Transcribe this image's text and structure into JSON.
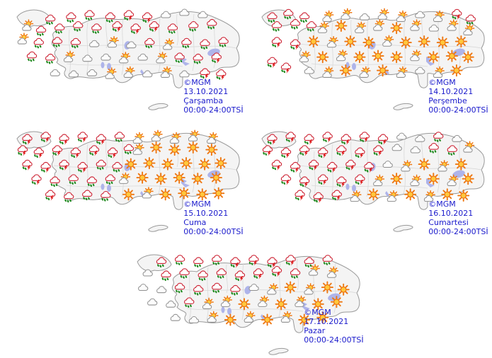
{
  "page": {
    "title": "MGM 5 günlük hava tahmin haritaları",
    "background": "#ffffff"
  },
  "colors": {
    "map_fill": "#f4f4f4",
    "map_border": "#9a9a9a",
    "province_line": "#d8d8d8",
    "lake": "#aeb4ea",
    "label_text": "#1a1acc",
    "sun_ray": "#ee7711",
    "sun_core": "#ffc83d",
    "cloud_fill": "#fcfcfc",
    "cloud_stroke": "#8f8f8f",
    "rain_cloud_stroke": "#cc2233",
    "raindrop": "#1e8a1e",
    "lightning": "#dd1111"
  },
  "icon_types": {
    "su": "sunny",
    "sc": "partly-cloudy",
    "c": "cloudy",
    "r": "rain",
    "s": "thunderstorm"
  },
  "icon_format": "[x_percent, y_percent, type]",
  "maps": [
    {
      "copyright": "©MGM",
      "date": "13.10.2021",
      "day": "Çarşamba",
      "hours": "00:00-24:00TSİ",
      "icons": [
        [
          18,
          12,
          "r"
        ],
        [
          27,
          10,
          "r"
        ],
        [
          35,
          8,
          "r"
        ],
        [
          44,
          10,
          "r"
        ],
        [
          52,
          8,
          "s"
        ],
        [
          60,
          10,
          "s"
        ],
        [
          68,
          8,
          "c"
        ],
        [
          76,
          6,
          "c"
        ],
        [
          84,
          8,
          "c"
        ],
        [
          8,
          18,
          "sc"
        ],
        [
          14,
          22,
          "r"
        ],
        [
          22,
          20,
          "r"
        ],
        [
          30,
          18,
          "r"
        ],
        [
          38,
          20,
          "r"
        ],
        [
          47,
          18,
          "s"
        ],
        [
          55,
          20,
          "s"
        ],
        [
          63,
          18,
          "s"
        ],
        [
          71,
          20,
          "r"
        ],
        [
          80,
          18,
          "r"
        ],
        [
          88,
          16,
          "r"
        ],
        [
          6,
          30,
          "sc"
        ],
        [
          13,
          33,
          "r"
        ],
        [
          21,
          32,
          "r"
        ],
        [
          29,
          33,
          "r"
        ],
        [
          37,
          34,
          "c"
        ],
        [
          45,
          33,
          "sc"
        ],
        [
          53,
          35,
          "c"
        ],
        [
          61,
          33,
          "r"
        ],
        [
          69,
          35,
          "sc"
        ],
        [
          77,
          33,
          "r"
        ],
        [
          85,
          34,
          "r"
        ],
        [
          93,
          32,
          "r"
        ],
        [
          10,
          45,
          "r"
        ],
        [
          18,
          47,
          "r"
        ],
        [
          26,
          46,
          "sc"
        ],
        [
          34,
          47,
          "c"
        ],
        [
          42,
          46,
          "c"
        ],
        [
          50,
          47,
          "sc"
        ],
        [
          58,
          46,
          "c"
        ],
        [
          66,
          47,
          "sc"
        ],
        [
          74,
          46,
          "r"
        ],
        [
          82,
          47,
          "r"
        ],
        [
          90,
          46,
          "s"
        ],
        [
          20,
          60,
          "c"
        ],
        [
          28,
          61,
          "c"
        ],
        [
          36,
          60,
          "c"
        ],
        [
          44,
          61,
          "sc"
        ],
        [
          52,
          60,
          "sc"
        ],
        [
          60,
          61,
          "c"
        ],
        [
          68,
          60,
          "sc"
        ],
        [
          76,
          61,
          "c"
        ],
        [
          85,
          60,
          "s"
        ],
        [
          92,
          61,
          "s"
        ]
      ]
    },
    {
      "copyright": "©MGM",
      "date": "14.10.2021",
      "day": "Perşembe",
      "hours": "00:00-24:00TSİ",
      "icons": [
        [
          8,
          10,
          "r"
        ],
        [
          15,
          7,
          "r"
        ],
        [
          22,
          10,
          "r"
        ],
        [
          10,
          18,
          "r"
        ],
        [
          18,
          16,
          "r"
        ],
        [
          25,
          18,
          "r"
        ],
        [
          32,
          10,
          "sc"
        ],
        [
          40,
          8,
          "sc"
        ],
        [
          48,
          10,
          "c"
        ],
        [
          56,
          8,
          "sc"
        ],
        [
          64,
          10,
          "sc"
        ],
        [
          72,
          8,
          "c"
        ],
        [
          80,
          10,
          "sc"
        ],
        [
          88,
          7,
          "s"
        ],
        [
          94,
          12,
          "r"
        ],
        [
          30,
          20,
          "sc"
        ],
        [
          38,
          18,
          "su"
        ],
        [
          46,
          20,
          "sc"
        ],
        [
          54,
          18,
          "sc"
        ],
        [
          62,
          20,
          "su"
        ],
        [
          70,
          18,
          "sc"
        ],
        [
          78,
          20,
          "c"
        ],
        [
          86,
          18,
          "sc"
        ],
        [
          93,
          22,
          "sc"
        ],
        [
          10,
          32,
          "s"
        ],
        [
          18,
          34,
          "s"
        ],
        [
          26,
          32,
          "su"
        ],
        [
          34,
          33,
          "sc"
        ],
        [
          42,
          32,
          "su"
        ],
        [
          50,
          33,
          "su"
        ],
        [
          58,
          32,
          "sc"
        ],
        [
          66,
          33,
          "su"
        ],
        [
          74,
          32,
          "su"
        ],
        [
          82,
          33,
          "su"
        ],
        [
          90,
          32,
          "su"
        ],
        [
          8,
          50,
          "s"
        ],
        [
          14,
          55,
          "s"
        ],
        [
          22,
          46,
          "sc"
        ],
        [
          30,
          46,
          "su"
        ],
        [
          38,
          45,
          "sc"
        ],
        [
          46,
          46,
          "su"
        ],
        [
          54,
          45,
          "su"
        ],
        [
          62,
          46,
          "su"
        ],
        [
          70,
          45,
          "sc"
        ],
        [
          78,
          46,
          "su"
        ],
        [
          86,
          45,
          "su"
        ],
        [
          93,
          46,
          "su"
        ],
        [
          24,
          58,
          "c"
        ],
        [
          32,
          60,
          "sc"
        ],
        [
          40,
          58,
          "su"
        ],
        [
          48,
          60,
          "sc"
        ],
        [
          56,
          58,
          "su"
        ],
        [
          64,
          60,
          "sc"
        ],
        [
          72,
          58,
          "c"
        ],
        [
          80,
          60,
          "sc"
        ],
        [
          88,
          58,
          "su"
        ]
      ]
    },
    {
      "copyright": "©MGM",
      "date": "15.10.2021",
      "day": "Cuma",
      "hours": "00:00-24:00TSİ",
      "icons": [
        [
          8,
          10,
          "s"
        ],
        [
          16,
          8,
          "s"
        ],
        [
          24,
          10,
          "s"
        ],
        [
          32,
          8,
          "s"
        ],
        [
          40,
          10,
          "s"
        ],
        [
          48,
          8,
          "r"
        ],
        [
          6,
          20,
          "s"
        ],
        [
          13,
          22,
          "s"
        ],
        [
          21,
          20,
          "s"
        ],
        [
          29,
          22,
          "s"
        ],
        [
          37,
          20,
          "s"
        ],
        [
          45,
          22,
          "s"
        ],
        [
          52,
          19,
          "r"
        ],
        [
          8,
          33,
          "s"
        ],
        [
          16,
          35,
          "s"
        ],
        [
          24,
          33,
          "s"
        ],
        [
          32,
          35,
          "s"
        ],
        [
          40,
          33,
          "r"
        ],
        [
          47,
          35,
          "r"
        ],
        [
          12,
          46,
          "s"
        ],
        [
          20,
          48,
          "r"
        ],
        [
          28,
          46,
          "r"
        ],
        [
          36,
          48,
          "r"
        ],
        [
          44,
          46,
          "r"
        ],
        [
          18,
          60,
          "s"
        ],
        [
          26,
          62,
          "r"
        ],
        [
          34,
          60,
          "r"
        ],
        [
          42,
          61,
          "r"
        ],
        [
          56,
          10,
          "sc"
        ],
        [
          64,
          8,
          "sc"
        ],
        [
          72,
          10,
          "sc"
        ],
        [
          80,
          8,
          "sc"
        ],
        [
          88,
          10,
          "sc"
        ],
        [
          56,
          20,
          "sc"
        ],
        [
          64,
          18,
          "su"
        ],
        [
          72,
          20,
          "su"
        ],
        [
          80,
          18,
          "su"
        ],
        [
          88,
          20,
          "su"
        ],
        [
          53,
          33,
          "su"
        ],
        [
          61,
          32,
          "su"
        ],
        [
          69,
          33,
          "su"
        ],
        [
          77,
          32,
          "su"
        ],
        [
          85,
          33,
          "su"
        ],
        [
          92,
          32,
          "su"
        ],
        [
          50,
          46,
          "sc"
        ],
        [
          58,
          45,
          "su"
        ],
        [
          66,
          46,
          "su"
        ],
        [
          74,
          45,
          "su"
        ],
        [
          82,
          46,
          "su"
        ],
        [
          90,
          45,
          "su"
        ],
        [
          52,
          60,
          "su"
        ],
        [
          60,
          59,
          "sc"
        ],
        [
          68,
          60,
          "su"
        ],
        [
          76,
          59,
          "su"
        ],
        [
          84,
          60,
          "su"
        ],
        [
          91,
          59,
          "su"
        ]
      ]
    },
    {
      "copyright": "©MGM",
      "date": "16.10.2021",
      "day": "Cumartesi",
      "hours": "00:00-24:00TSİ",
      "icons": [
        [
          8,
          10,
          "s"
        ],
        [
          16,
          8,
          "s"
        ],
        [
          24,
          10,
          "s"
        ],
        [
          32,
          8,
          "s"
        ],
        [
          40,
          10,
          "s"
        ],
        [
          48,
          8,
          "s"
        ],
        [
          56,
          10,
          "s"
        ],
        [
          64,
          8,
          "c"
        ],
        [
          72,
          10,
          "c"
        ],
        [
          80,
          8,
          "r"
        ],
        [
          88,
          10,
          "c"
        ],
        [
          6,
          20,
          "s"
        ],
        [
          14,
          22,
          "s"
        ],
        [
          22,
          20,
          "s"
        ],
        [
          30,
          22,
          "s"
        ],
        [
          38,
          20,
          "s"
        ],
        [
          46,
          22,
          "s"
        ],
        [
          54,
          20,
          "s"
        ],
        [
          62,
          18,
          "c"
        ],
        [
          70,
          20,
          "c"
        ],
        [
          78,
          18,
          "r"
        ],
        [
          86,
          20,
          "r"
        ],
        [
          93,
          18,
          "sc"
        ],
        [
          10,
          33,
          "s"
        ],
        [
          18,
          35,
          "s"
        ],
        [
          26,
          33,
          "s"
        ],
        [
          34,
          35,
          "s"
        ],
        [
          42,
          33,
          "s"
        ],
        [
          50,
          35,
          "s"
        ],
        [
          58,
          33,
          "c"
        ],
        [
          66,
          35,
          "sc"
        ],
        [
          74,
          33,
          "su"
        ],
        [
          82,
          35,
          "sc"
        ],
        [
          90,
          33,
          "su"
        ],
        [
          14,
          46,
          "s"
        ],
        [
          22,
          48,
          "s"
        ],
        [
          30,
          46,
          "s"
        ],
        [
          38,
          48,
          "s"
        ],
        [
          46,
          46,
          "s"
        ],
        [
          54,
          48,
          "sc"
        ],
        [
          62,
          46,
          "su"
        ],
        [
          70,
          48,
          "sc"
        ],
        [
          78,
          46,
          "su"
        ],
        [
          86,
          48,
          "sc"
        ],
        [
          93,
          46,
          "su"
        ],
        [
          20,
          60,
          "s"
        ],
        [
          28,
          62,
          "s"
        ],
        [
          36,
          60,
          "s"
        ],
        [
          44,
          62,
          "sc"
        ],
        [
          52,
          60,
          "su"
        ],
        [
          60,
          62,
          "sc"
        ],
        [
          68,
          60,
          "su"
        ],
        [
          76,
          62,
          "sc"
        ],
        [
          84,
          60,
          "su"
        ],
        [
          91,
          61,
          "su"
        ]
      ]
    },
    {
      "copyright": "©MGM",
      "date": "17.10.2021",
      "day": "Pazar",
      "hours": "00:00-24:00TSİ",
      "icons": [
        [
          14,
          10,
          "r"
        ],
        [
          22,
          8,
          "r"
        ],
        [
          30,
          10,
          "r"
        ],
        [
          38,
          8,
          "r"
        ],
        [
          46,
          10,
          "s"
        ],
        [
          54,
          8,
          "s"
        ],
        [
          62,
          10,
          "s"
        ],
        [
          70,
          8,
          "s"
        ],
        [
          78,
          10,
          "r"
        ],
        [
          86,
          8,
          "r"
        ],
        [
          8,
          20,
          "c"
        ],
        [
          16,
          22,
          "r"
        ],
        [
          24,
          20,
          "r"
        ],
        [
          32,
          22,
          "r"
        ],
        [
          40,
          20,
          "r"
        ],
        [
          48,
          22,
          "s"
        ],
        [
          56,
          20,
          "s"
        ],
        [
          64,
          18,
          "s"
        ],
        [
          72,
          20,
          "r"
        ],
        [
          80,
          18,
          "sc"
        ],
        [
          88,
          20,
          "sc"
        ],
        [
          6,
          33,
          "c"
        ],
        [
          14,
          35,
          "c"
        ],
        [
          22,
          33,
          "r"
        ],
        [
          30,
          35,
          "r"
        ],
        [
          38,
          33,
          "r"
        ],
        [
          46,
          35,
          "r"
        ],
        [
          54,
          33,
          "c"
        ],
        [
          62,
          35,
          "sc"
        ],
        [
          70,
          33,
          "su"
        ],
        [
          78,
          35,
          "sc"
        ],
        [
          86,
          33,
          "su"
        ],
        [
          93,
          35,
          "su"
        ],
        [
          10,
          46,
          "c"
        ],
        [
          18,
          48,
          "c"
        ],
        [
          26,
          46,
          "r"
        ],
        [
          34,
          48,
          "sc"
        ],
        [
          42,
          46,
          "sc"
        ],
        [
          50,
          48,
          "su"
        ],
        [
          58,
          46,
          "sc"
        ],
        [
          66,
          48,
          "su"
        ],
        [
          74,
          46,
          "sc"
        ],
        [
          82,
          48,
          "su"
        ],
        [
          90,
          46,
          "su"
        ],
        [
          20,
          60,
          "c"
        ],
        [
          28,
          62,
          "c"
        ],
        [
          36,
          60,
          "sc"
        ],
        [
          44,
          62,
          "su"
        ],
        [
          52,
          60,
          "sc"
        ],
        [
          60,
          62,
          "su"
        ],
        [
          68,
          60,
          "sc"
        ],
        [
          76,
          62,
          "su"
        ],
        [
          84,
          60,
          "su"
        ]
      ]
    }
  ]
}
